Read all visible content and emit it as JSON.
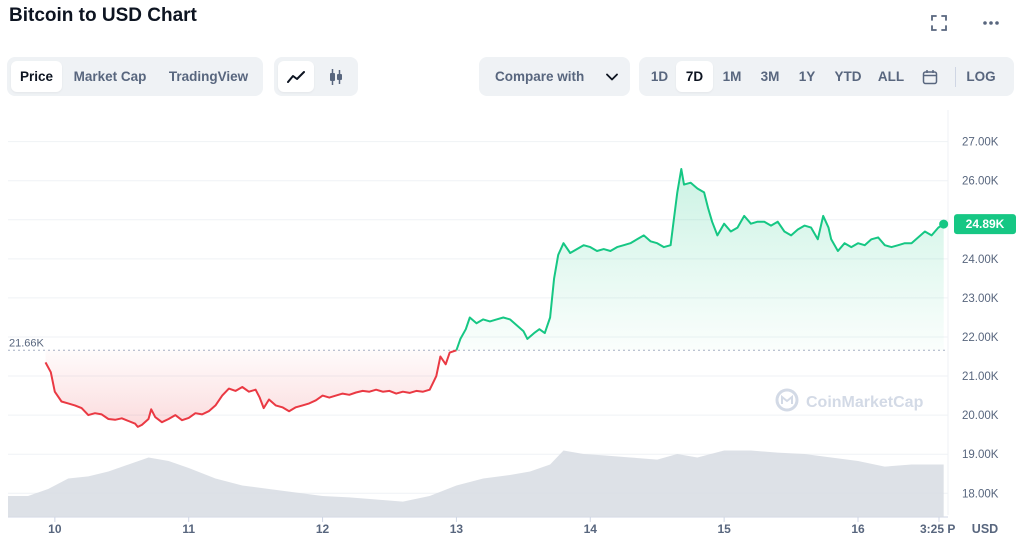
{
  "header": {
    "title": "Bitcoin to USD Chart"
  },
  "toolbar": {
    "tabs": [
      "Price",
      "Market Cap",
      "TradingView"
    ],
    "compare_label": "Compare with",
    "ranges": [
      "1D",
      "7D",
      "1M",
      "3M",
      "1Y",
      "YTD",
      "ALL"
    ],
    "log_label": "LOG",
    "active_tab": "Price",
    "active_range": "7D",
    "active_chart_style": "line"
  },
  "chart_data": {
    "type": "area",
    "y_ticks": [
      "27.00K",
      "26.00K",
      "25.00K",
      "24.00K",
      "23.00K",
      "22.00K",
      "21.00K",
      "20.00K",
      "19.00K",
      "18.00K"
    ],
    "ylim": [
      17700,
      27400
    ],
    "x_ticks": [
      "10",
      "11",
      "12",
      "13",
      "14",
      "15",
      "16",
      "3:25 P"
    ],
    "x_tick_positions": [
      10,
      11,
      12,
      13,
      14,
      15,
      16,
      16.7
    ],
    "xlim": [
      9.65,
      16.65
    ],
    "currency": "USD",
    "reference_price": 21660,
    "reference_label": "21.66K",
    "current_price": 24890,
    "current_label": "24.89K",
    "watermark": "CoinMarketCap",
    "colors": {
      "up": "#16c784",
      "down": "#ea3943",
      "volume": "#d7dce3"
    },
    "series": [
      {
        "values": [
          [
            9.93,
            21350
          ],
          [
            9.97,
            21100
          ],
          [
            10.0,
            20600
          ],
          [
            10.05,
            20350
          ],
          [
            10.1,
            20300
          ],
          [
            10.15,
            20250
          ],
          [
            10.2,
            20180
          ],
          [
            10.25,
            20000
          ],
          [
            10.3,
            20050
          ],
          [
            10.35,
            20020
          ],
          [
            10.4,
            19900
          ],
          [
            10.45,
            19880
          ],
          [
            10.5,
            19920
          ],
          [
            10.55,
            19850
          ],
          [
            10.6,
            19780
          ],
          [
            10.62,
            19700
          ],
          [
            10.65,
            19750
          ],
          [
            10.7,
            19900
          ],
          [
            10.72,
            20150
          ],
          [
            10.75,
            19950
          ],
          [
            10.8,
            19820
          ],
          [
            10.85,
            19900
          ],
          [
            10.9,
            20000
          ],
          [
            10.95,
            19870
          ],
          [
            11.0,
            19930
          ],
          [
            11.05,
            20050
          ],
          [
            11.1,
            20020
          ],
          [
            11.15,
            20100
          ],
          [
            11.2,
            20250
          ],
          [
            11.25,
            20500
          ],
          [
            11.3,
            20680
          ],
          [
            11.35,
            20620
          ],
          [
            11.4,
            20720
          ],
          [
            11.45,
            20600
          ],
          [
            11.5,
            20650
          ],
          [
            11.53,
            20450
          ],
          [
            11.56,
            20180
          ],
          [
            11.6,
            20400
          ],
          [
            11.65,
            20250
          ],
          [
            11.7,
            20200
          ],
          [
            11.75,
            20100
          ],
          [
            11.8,
            20200
          ],
          [
            11.85,
            20250
          ],
          [
            11.9,
            20300
          ],
          [
            11.95,
            20380
          ],
          [
            12.0,
            20500
          ],
          [
            12.05,
            20450
          ],
          [
            12.1,
            20500
          ],
          [
            12.15,
            20550
          ],
          [
            12.2,
            20520
          ],
          [
            12.25,
            20580
          ],
          [
            12.3,
            20620
          ],
          [
            12.35,
            20600
          ],
          [
            12.4,
            20650
          ],
          [
            12.45,
            20600
          ],
          [
            12.5,
            20620
          ],
          [
            12.55,
            20550
          ],
          [
            12.6,
            20600
          ],
          [
            12.65,
            20570
          ],
          [
            12.7,
            20620
          ],
          [
            12.75,
            20600
          ],
          [
            12.8,
            20650
          ],
          [
            12.85,
            21000
          ],
          [
            12.88,
            21500
          ],
          [
            12.92,
            21300
          ],
          [
            12.95,
            21600
          ],
          [
            13.0,
            21660
          ],
          [
            13.03,
            21950
          ],
          [
            13.07,
            22200
          ],
          [
            13.1,
            22500
          ],
          [
            13.15,
            22350
          ],
          [
            13.2,
            22450
          ],
          [
            13.25,
            22400
          ],
          [
            13.3,
            22450
          ],
          [
            13.35,
            22500
          ],
          [
            13.4,
            22450
          ],
          [
            13.45,
            22300
          ],
          [
            13.5,
            22150
          ],
          [
            13.53,
            21950
          ],
          [
            13.58,
            22100
          ],
          [
            13.62,
            22200
          ],
          [
            13.66,
            22100
          ],
          [
            13.7,
            22500
          ],
          [
            13.73,
            23500
          ],
          [
            13.76,
            24100
          ],
          [
            13.8,
            24400
          ],
          [
            13.85,
            24150
          ],
          [
            13.9,
            24250
          ],
          [
            13.95,
            24350
          ],
          [
            14.0,
            24300
          ],
          [
            14.05,
            24200
          ],
          [
            14.1,
            24250
          ],
          [
            14.15,
            24200
          ],
          [
            14.2,
            24300
          ],
          [
            14.25,
            24350
          ],
          [
            14.3,
            24400
          ],
          [
            14.35,
            24500
          ],
          [
            14.4,
            24600
          ],
          [
            14.45,
            24450
          ],
          [
            14.5,
            24400
          ],
          [
            14.55,
            24300
          ],
          [
            14.6,
            24350
          ],
          [
            14.62,
            24900
          ],
          [
            14.65,
            25700
          ],
          [
            14.68,
            26300
          ],
          [
            14.7,
            25900
          ],
          [
            14.75,
            25950
          ],
          [
            14.8,
            25800
          ],
          [
            14.85,
            25700
          ],
          [
            14.88,
            25300
          ],
          [
            14.91,
            24950
          ],
          [
            14.95,
            24600
          ],
          [
            15.0,
            24900
          ],
          [
            15.05,
            24700
          ],
          [
            15.1,
            24800
          ],
          [
            15.15,
            25100
          ],
          [
            15.2,
            24900
          ],
          [
            15.25,
            24950
          ],
          [
            15.3,
            24950
          ],
          [
            15.35,
            24850
          ],
          [
            15.4,
            24950
          ],
          [
            15.45,
            24700
          ],
          [
            15.5,
            24600
          ],
          [
            15.55,
            24750
          ],
          [
            15.6,
            24850
          ],
          [
            15.65,
            24800
          ],
          [
            15.7,
            24500
          ],
          [
            15.74,
            25100
          ],
          [
            15.78,
            24800
          ],
          [
            15.8,
            24500
          ],
          [
            15.85,
            24200
          ],
          [
            15.9,
            24400
          ],
          [
            15.95,
            24300
          ],
          [
            16.0,
            24400
          ],
          [
            16.05,
            24350
          ],
          [
            16.1,
            24500
          ],
          [
            16.15,
            24550
          ],
          [
            16.2,
            24350
          ],
          [
            16.25,
            24300
          ],
          [
            16.3,
            24350
          ],
          [
            16.35,
            24400
          ],
          [
            16.4,
            24400
          ],
          [
            16.45,
            24550
          ],
          [
            16.5,
            24700
          ],
          [
            16.55,
            24600
          ],
          [
            16.6,
            24800
          ],
          [
            16.64,
            24890
          ]
        ]
      }
    ],
    "volume": [
      [
        9.65,
        0.3
      ],
      [
        9.8,
        0.3
      ],
      [
        9.95,
        0.4
      ],
      [
        10.1,
        0.55
      ],
      [
        10.25,
        0.58
      ],
      [
        10.4,
        0.65
      ],
      [
        10.55,
        0.75
      ],
      [
        10.7,
        0.85
      ],
      [
        10.85,
        0.8
      ],
      [
        11.0,
        0.7
      ],
      [
        11.2,
        0.55
      ],
      [
        11.4,
        0.45
      ],
      [
        11.6,
        0.4
      ],
      [
        11.8,
        0.35
      ],
      [
        12.0,
        0.3
      ],
      [
        12.2,
        0.28
      ],
      [
        12.4,
        0.25
      ],
      [
        12.6,
        0.22
      ],
      [
        12.8,
        0.3
      ],
      [
        13.0,
        0.45
      ],
      [
        13.2,
        0.55
      ],
      [
        13.4,
        0.6
      ],
      [
        13.55,
        0.65
      ],
      [
        13.7,
        0.75
      ],
      [
        13.8,
        0.95
      ],
      [
        13.95,
        0.9
      ],
      [
        14.1,
        0.88
      ],
      [
        14.3,
        0.85
      ],
      [
        14.5,
        0.82
      ],
      [
        14.65,
        0.9
      ],
      [
        14.8,
        0.85
      ],
      [
        15.0,
        0.95
      ],
      [
        15.2,
        0.95
      ],
      [
        15.4,
        0.92
      ],
      [
        15.6,
        0.9
      ],
      [
        15.8,
        0.85
      ],
      [
        16.0,
        0.8
      ],
      [
        16.2,
        0.72
      ],
      [
        16.4,
        0.75
      ],
      [
        16.64,
        0.75
      ]
    ]
  }
}
